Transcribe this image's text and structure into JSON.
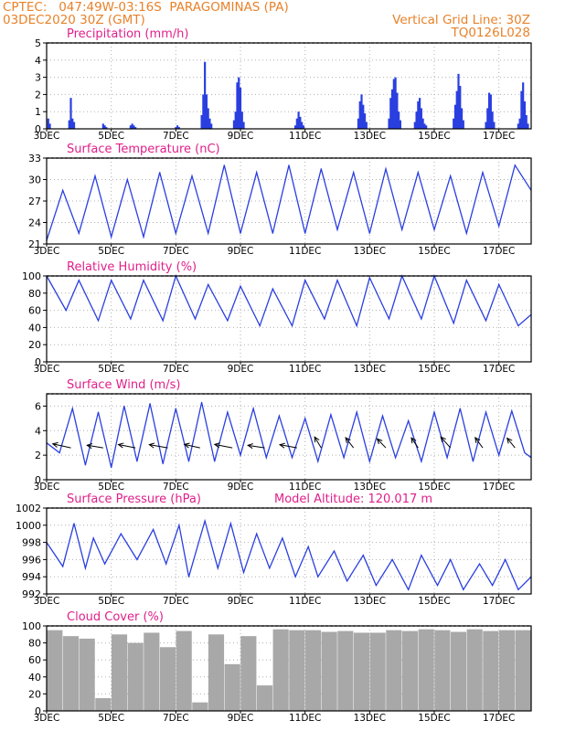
{
  "header": {
    "line1": "CPTEC:   047:49W-03:16S  PARAGOMINAS (PA)",
    "line2": "03DEC2020 30Z (GMT)",
    "grid_note": "Vertical Grid Line: 30Z",
    "code": "TQ0126L028"
  },
  "colors": {
    "header": "#e8822a",
    "panel_title": "#e0208a",
    "series": "#2a3fe0",
    "cloud": "#a8a8a8",
    "grid": "#b0b0b0"
  },
  "x_axis": {
    "labels": [
      "3DEC",
      "5DEC",
      "7DEC",
      "9DEC",
      "11DEC",
      "13DEC",
      "15DEC",
      "17DEC"
    ],
    "range_days": [
      0,
      15
    ]
  },
  "chart_data": [
    {
      "type": "bar",
      "title": "Precipitation (mm/h)",
      "ylim": [
        0,
        5
      ],
      "yticks": [
        "0",
        "1",
        "2",
        "3",
        "4",
        "5"
      ],
      "grid": true,
      "x": [
        0.05,
        0.1,
        0.7,
        0.75,
        0.8,
        0.85,
        1.75,
        1.8,
        1.85,
        2.6,
        2.65,
        2.7,
        2.75,
        4.0,
        4.05,
        4.1,
        4.8,
        4.85,
        4.9,
        4.95,
        5.0,
        5.05,
        5.1,
        5.8,
        5.85,
        5.9,
        5.95,
        6.0,
        6.05,
        6.1,
        7.7,
        7.75,
        7.8,
        7.85,
        7.9,
        7.95,
        9.65,
        9.7,
        9.75,
        9.8,
        9.85,
        9.9,
        10.6,
        10.65,
        10.7,
        10.75,
        10.8,
        10.85,
        10.9,
        10.95,
        11.4,
        11.45,
        11.5,
        11.55,
        11.6,
        11.65,
        11.7,
        11.75,
        12.6,
        12.65,
        12.7,
        12.75,
        12.8,
        12.85,
        12.9,
        13.6,
        13.65,
        13.7,
        13.75,
        13.8,
        13.85,
        14.6,
        14.65,
        14.7,
        14.75,
        14.8,
        14.85,
        14.9
      ],
      "values": [
        0.6,
        0.3,
        0.5,
        1.8,
        0.6,
        0.4,
        0.3,
        0.2,
        0.1,
        0.2,
        0.3,
        0.2,
        0.1,
        0.1,
        0.2,
        0.1,
        0.8,
        2.0,
        3.9,
        2.0,
        1.2,
        0.6,
        0.3,
        0.5,
        1.0,
        2.7,
        3.0,
        2.4,
        1.0,
        0.4,
        0.2,
        0.6,
        1.0,
        0.7,
        0.4,
        0.2,
        0.6,
        1.6,
        2.0,
        1.4,
        0.9,
        0.4,
        0.6,
        1.8,
        2.3,
        2.9,
        3.0,
        2.1,
        1.0,
        0.5,
        0.4,
        1.0,
        1.6,
        1.8,
        1.2,
        0.6,
        0.3,
        0.2,
        0.6,
        1.4,
        2.2,
        3.2,
        2.5,
        1.2,
        0.5,
        0.4,
        1.2,
        2.1,
        2.0,
        1.0,
        0.4,
        0.3,
        0.6,
        2.2,
        2.7,
        1.6,
        0.8,
        0.3
      ]
    },
    {
      "type": "line",
      "title": "Surface Temperature (nC)",
      "ylim": [
        21,
        33
      ],
      "yticks": [
        "21",
        "24",
        "27",
        "30",
        "33"
      ],
      "grid": true,
      "x": [
        0.0,
        0.5,
        1.0,
        1.5,
        2.0,
        2.5,
        3.0,
        3.5,
        4.0,
        4.5,
        5.0,
        5.5,
        6.0,
        6.5,
        7.0,
        7.5,
        8.0,
        8.5,
        9.0,
        9.5,
        10.0,
        10.5,
        11.0,
        11.5,
        12.0,
        12.5,
        13.0,
        13.5,
        14.0,
        14.5,
        15.0
      ],
      "values": [
        21.5,
        28.5,
        22.5,
        30.5,
        22.0,
        30.0,
        22.0,
        31.0,
        22.5,
        30.5,
        22.5,
        32.0,
        22.5,
        31.0,
        22.5,
        32.0,
        22.5,
        31.5,
        23.0,
        31.0,
        22.5,
        31.5,
        23.0,
        31.0,
        23.0,
        30.5,
        22.5,
        31.0,
        23.5,
        32.0,
        28.5
      ]
    },
    {
      "type": "line",
      "title": "Relative Humidity (%)",
      "ylim": [
        0,
        100
      ],
      "yticks": [
        "0",
        "20",
        "40",
        "60",
        "80",
        "100"
      ],
      "grid": true,
      "x": [
        0.0,
        0.6,
        1.0,
        1.6,
        2.0,
        2.6,
        3.0,
        3.6,
        4.0,
        4.6,
        5.0,
        5.6,
        6.0,
        6.6,
        7.0,
        7.6,
        8.0,
        8.6,
        9.0,
        9.6,
        10.0,
        10.6,
        11.0,
        11.6,
        12.0,
        12.6,
        13.0,
        13.6,
        14.0,
        14.6,
        15.0
      ],
      "values": [
        100,
        60,
        95,
        48,
        95,
        50,
        95,
        48,
        100,
        50,
        90,
        48,
        88,
        42,
        85,
        42,
        95,
        50,
        95,
        42,
        98,
        50,
        100,
        50,
        100,
        45,
        95,
        48,
        90,
        42,
        55
      ]
    },
    {
      "type": "line",
      "title": "Surface Wind (m/s)",
      "ylim": [
        0,
        7
      ],
      "yticks": [
        "0",
        "2",
        "4",
        "6"
      ],
      "grid": true,
      "x": [
        0.0,
        0.4,
        0.8,
        1.2,
        1.6,
        2.0,
        2.4,
        2.8,
        3.2,
        3.6,
        4.0,
        4.4,
        4.8,
        5.2,
        5.6,
        6.0,
        6.4,
        6.8,
        7.2,
        7.6,
        8.0,
        8.4,
        8.8,
        9.2,
        9.6,
        10.0,
        10.4,
        10.8,
        11.2,
        11.6,
        12.0,
        12.4,
        12.8,
        13.2,
        13.6,
        14.0,
        14.4,
        14.8,
        15.0
      ],
      "values": [
        3.0,
        2.2,
        5.8,
        1.2,
        5.5,
        1.0,
        6.0,
        1.5,
        6.2,
        1.3,
        5.8,
        1.5,
        6.3,
        1.5,
        5.5,
        2.0,
        5.8,
        1.8,
        5.2,
        1.8,
        5.0,
        1.5,
        5.3,
        1.8,
        5.5,
        1.5,
        5.2,
        1.8,
        4.8,
        1.5,
        5.5,
        1.8,
        5.8,
        1.5,
        5.5,
        2.0,
        5.6,
        2.2,
        1.8
      ],
      "wind_vectors": {
        "x": [
          0.75,
          1.75,
          2.75,
          3.75,
          4.75,
          5.75,
          6.75,
          7.75,
          8.5,
          9.5,
          10.5,
          11.5,
          12.5,
          13.5,
          14.5
        ],
        "speed": [
          3.0,
          2.6,
          2.8,
          3.0,
          2.6,
          2.9,
          2.7,
          2.8,
          3.0,
          2.9,
          2.7,
          2.8,
          3.2,
          2.9,
          2.8
        ],
        "direction_deg": [
          70,
          75,
          72,
          74,
          70,
          72,
          76,
          73,
          20,
          25,
          30,
          22,
          28,
          24,
          26
        ]
      }
    },
    {
      "type": "line",
      "title": "Surface Pressure (hPa)",
      "annotation": "Model Altitude: 120.017 m",
      "ylim": [
        992,
        1002
      ],
      "yticks": [
        "992",
        "994",
        "996",
        "998",
        "1000",
        "1002"
      ],
      "grid": true,
      "x": [
        0.0,
        0.5,
        0.85,
        1.2,
        1.45,
        1.8,
        2.3,
        2.8,
        3.3,
        3.7,
        4.1,
        4.4,
        4.9,
        5.3,
        5.7,
        6.1,
        6.5,
        6.9,
        7.3,
        7.7,
        8.1,
        8.4,
        8.9,
        9.3,
        9.8,
        10.2,
        10.7,
        11.2,
        11.6,
        12.1,
        12.5,
        12.9,
        13.4,
        13.8,
        14.2,
        14.6,
        15.0
      ],
      "values": [
        998.0,
        995.2,
        1000.2,
        995.0,
        998.5,
        995.5,
        999.0,
        996.0,
        999.5,
        995.5,
        1000.0,
        994.0,
        1000.5,
        995.0,
        1000.2,
        994.5,
        999.0,
        995.0,
        998.5,
        994.0,
        997.5,
        994.0,
        997.0,
        993.5,
        996.5,
        993.0,
        996.0,
        992.5,
        996.5,
        993.0,
        996.0,
        992.5,
        995.5,
        993.0,
        996.0,
        992.5,
        994.0
      ]
    },
    {
      "type": "bar",
      "title": "Cloud Cover (%)",
      "ylim": [
        0,
        100
      ],
      "yticks": [
        "0",
        "20",
        "40",
        "60",
        "80",
        "100"
      ],
      "grid": true,
      "x": [
        0.25,
        0.75,
        1.25,
        1.75,
        2.25,
        2.75,
        3.25,
        3.75,
        4.25,
        4.75,
        5.25,
        5.75,
        6.25,
        6.75,
        7.25,
        7.75,
        8.25,
        8.75,
        9.25,
        9.75,
        10.25,
        10.75,
        11.25,
        11.75,
        12.25,
        12.75,
        13.25,
        13.75,
        14.25,
        14.75
      ],
      "values": [
        95,
        88,
        85,
        15,
        90,
        80,
        92,
        75,
        94,
        10,
        90,
        55,
        88,
        30,
        96,
        95,
        95,
        93,
        94,
        92,
        92,
        95,
        94,
        96,
        95,
        93,
        96,
        94,
        95,
        95
      ]
    }
  ]
}
